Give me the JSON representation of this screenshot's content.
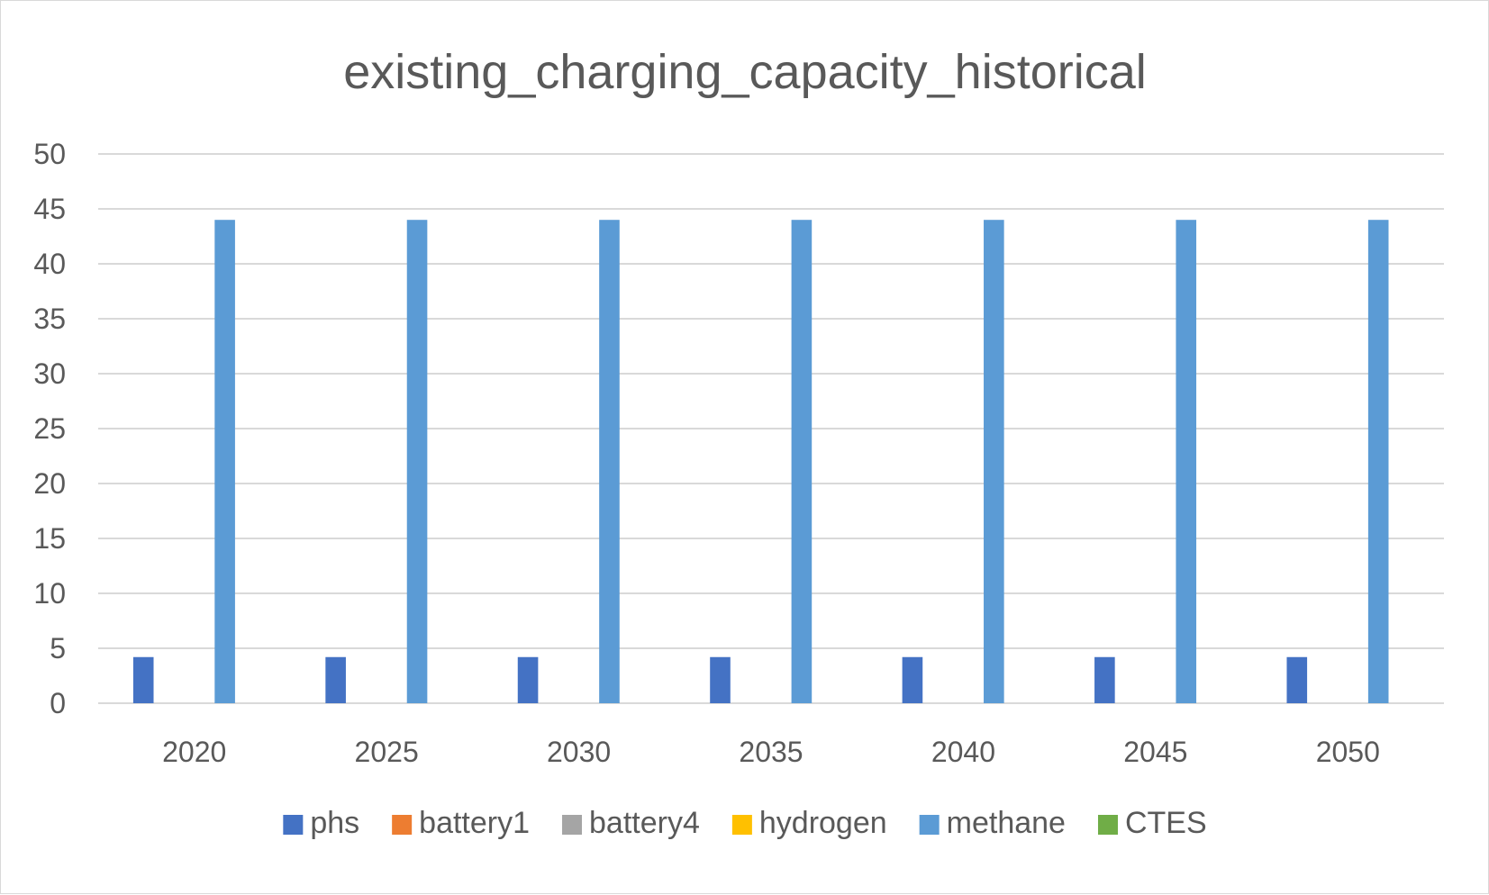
{
  "chart_data": {
    "type": "bar",
    "title": "existing_charging_capacity_historical",
    "xlabel": "",
    "ylabel": "",
    "categories": [
      "2020",
      "2025",
      "2030",
      "2035",
      "2040",
      "2045",
      "2050"
    ],
    "ylim": [
      0,
      50
    ],
    "yticks": [
      0,
      5,
      10,
      15,
      20,
      25,
      30,
      35,
      40,
      45,
      50
    ],
    "grid": true,
    "legend_position": "bottom",
    "series": [
      {
        "name": "phs",
        "color": "#4472C4",
        "values": [
          4.2,
          4.2,
          4.2,
          4.2,
          4.2,
          4.2,
          4.2
        ]
      },
      {
        "name": "battery1",
        "color": "#ED7D31",
        "values": [
          0,
          0,
          0,
          0,
          0,
          0,
          0
        ]
      },
      {
        "name": "battery4",
        "color": "#A5A5A5",
        "values": [
          0,
          0,
          0,
          0,
          0,
          0,
          0
        ]
      },
      {
        "name": "hydrogen",
        "color": "#FFC000",
        "values": [
          0,
          0,
          0,
          0,
          0,
          0,
          0
        ]
      },
      {
        "name": "methane",
        "color": "#5B9BD5",
        "values": [
          44,
          44,
          44,
          44,
          44,
          44,
          44
        ]
      },
      {
        "name": "CTES",
        "color": "#70AD47",
        "values": [
          0,
          0,
          0,
          0,
          0,
          0,
          0
        ]
      }
    ]
  }
}
